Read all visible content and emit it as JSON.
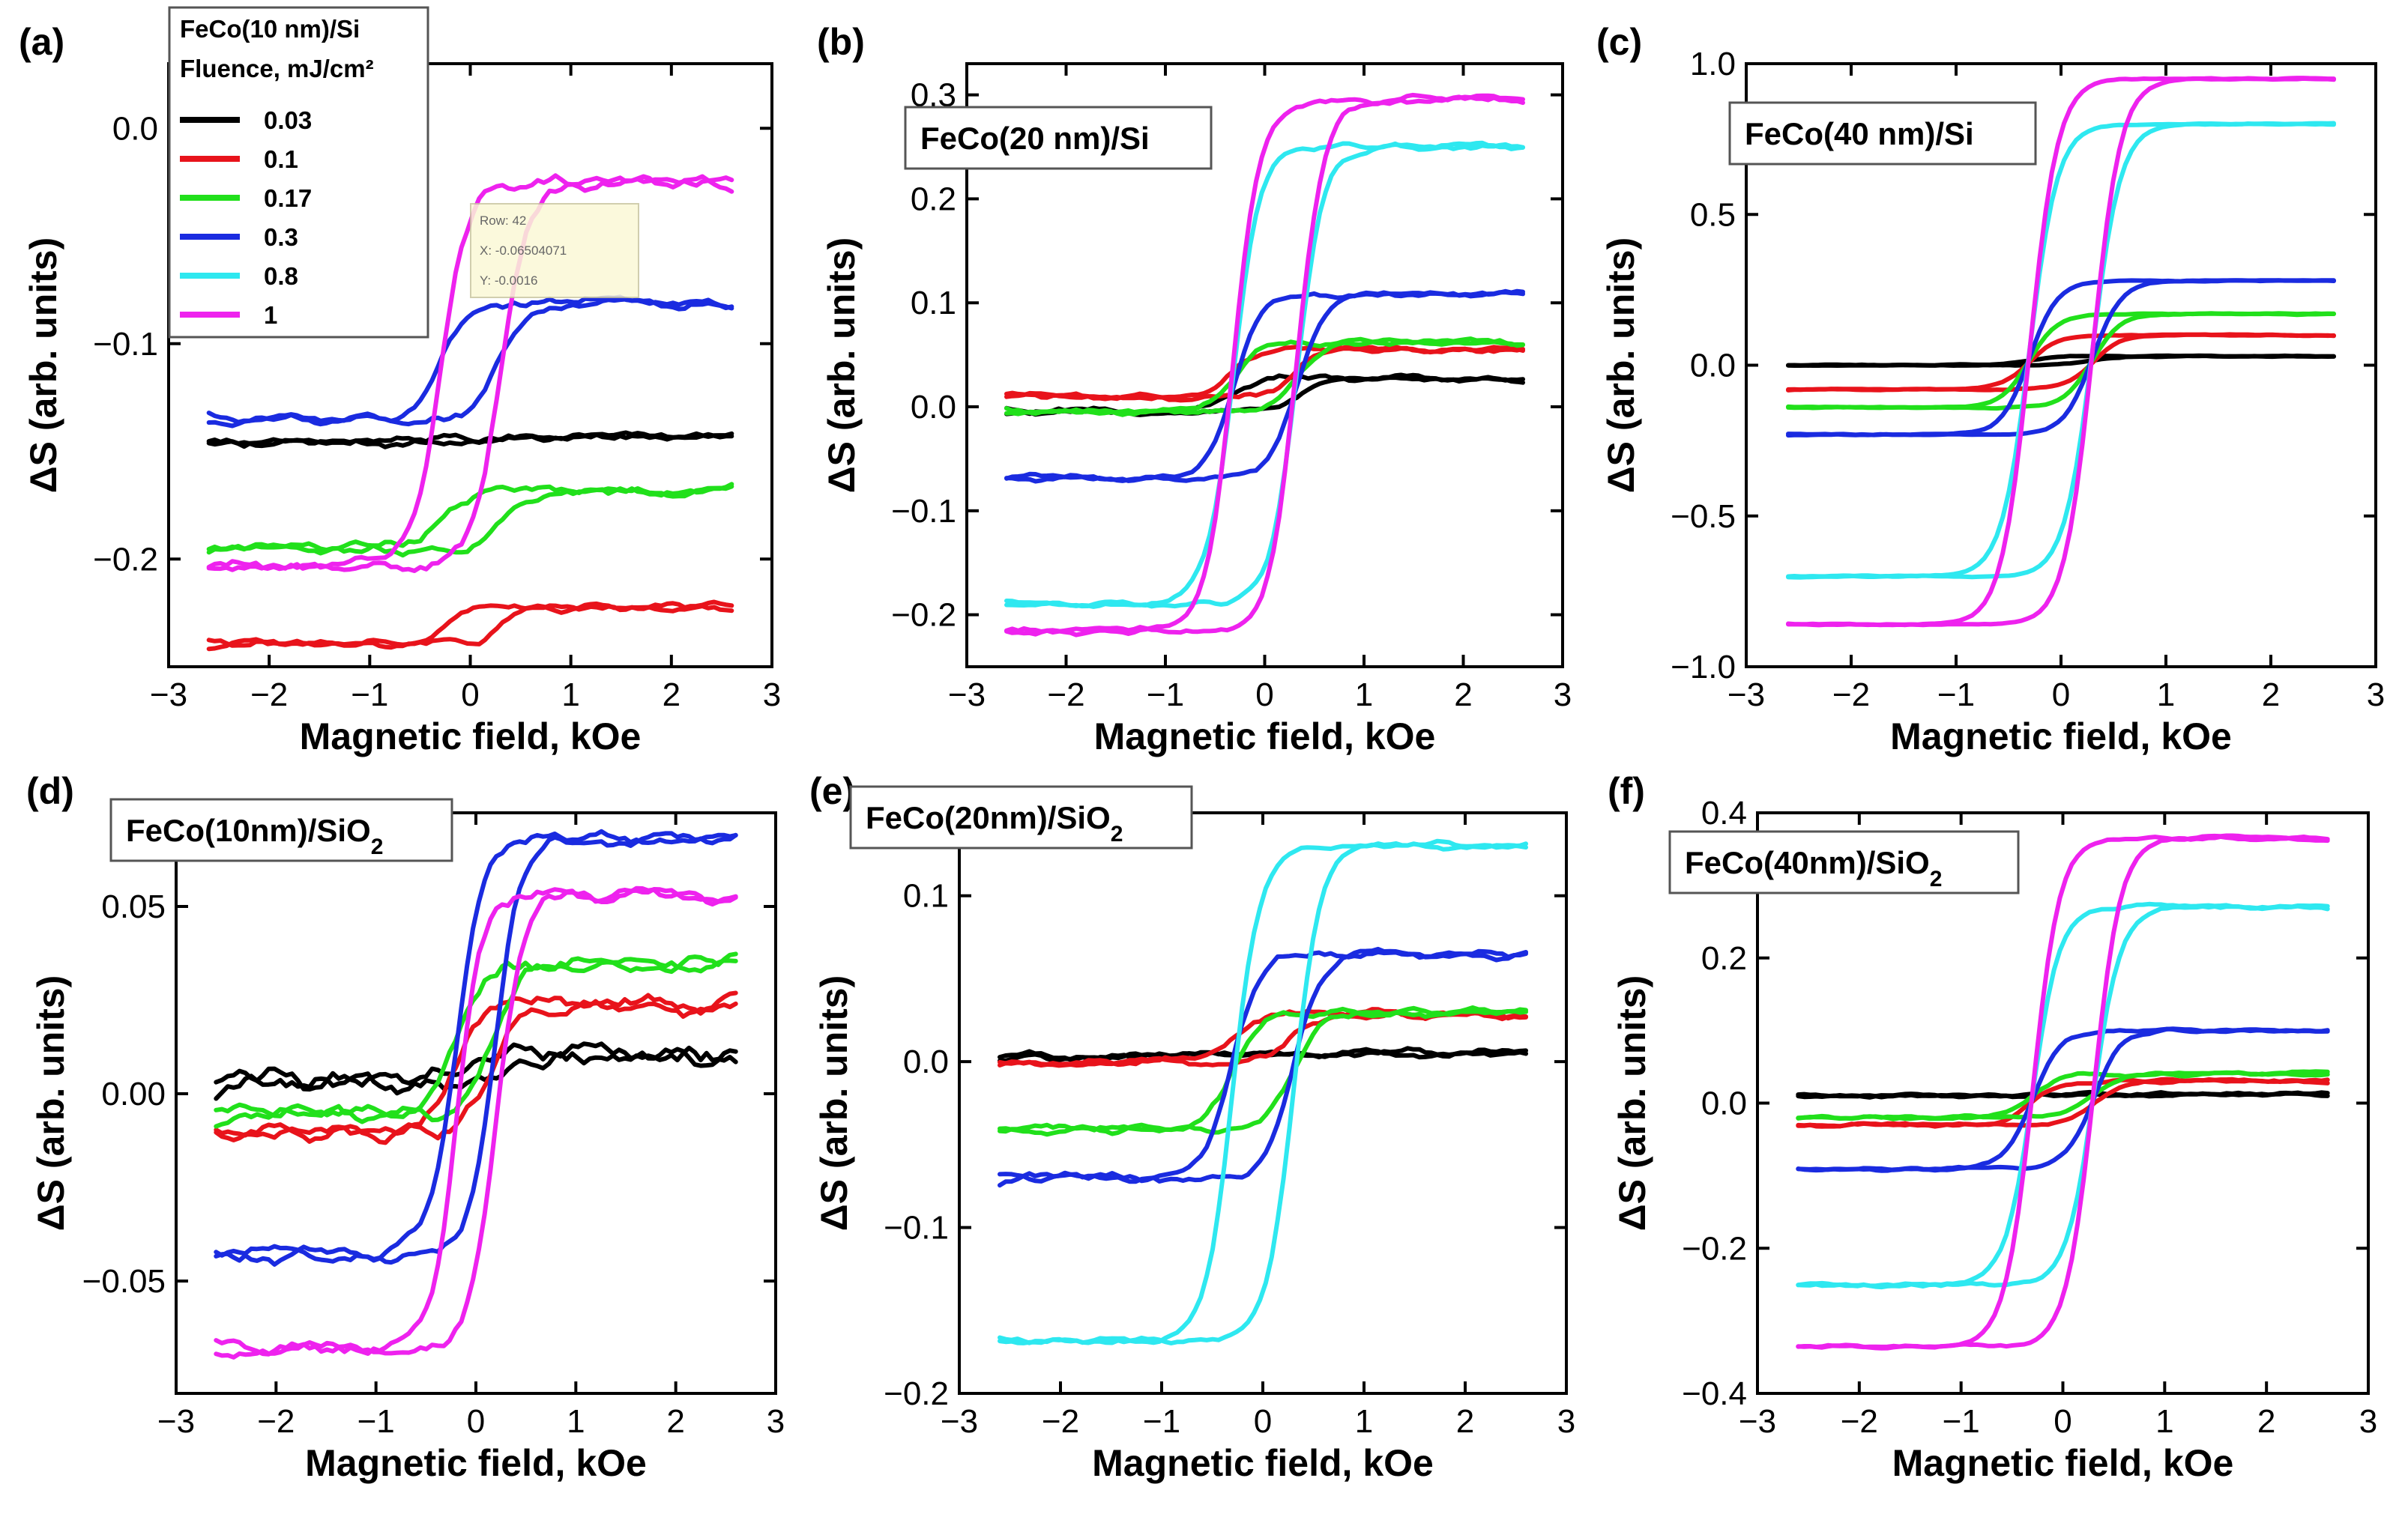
{
  "colors": {
    "0.03": "#000000",
    "0.1": "#e8131b",
    "0.17": "#21e01b",
    "0.3": "#1a2be0",
    "0.8": "#2ee8f0",
    "1": "#ee22ee"
  },
  "legend": {
    "sample": "FeCo(10 nm)/Si",
    "title": "Fluence, mJ/cm²",
    "entries": [
      "0.03",
      "0.1",
      "0.17",
      "0.3",
      "0.8",
      "1"
    ]
  },
  "tooltip": {
    "row": "Row: 42",
    "x": "X:    -0.06504071",
    "y": "Y:    -0.0016"
  },
  "chart_data": [
    {
      "type": "line",
      "panel": "(a)",
      "annotation": "FeCo(10 nm)/Si",
      "xlabel": "Magnetic field, kOe",
      "ylabel": "ΔS (arb. units)",
      "xlim": [
        -3,
        3
      ],
      "ylim": [
        -0.25,
        0.03
      ],
      "xticks": [
        -3,
        -2,
        -1,
        0,
        1,
        2,
        3
      ],
      "yticks": [
        0.0,
        -0.1,
        -0.2
      ],
      "yticklabels": [
        "0.0",
        "-0.1",
        "-0.2"
      ],
      "hc": 0.3,
      "series": [
        {
          "name": "0.03",
          "low": -0.146,
          "high": -0.143,
          "noise": 0.004
        },
        {
          "name": "0.1",
          "low": -0.24,
          "high": -0.222,
          "noise": 0.004
        },
        {
          "name": "0.17",
          "low": -0.195,
          "high": -0.168,
          "noise": 0.005
        },
        {
          "name": "0.3",
          "low": -0.135,
          "high": -0.082,
          "noise": 0.005
        },
        {
          "name": "0.8",
          "low": null,
          "high": null,
          "noise": 0
        },
        {
          "name": "1",
          "low": -0.203,
          "high": -0.025,
          "noise": 0.006
        }
      ]
    },
    {
      "type": "line",
      "panel": "(b)",
      "annotation": "FeCo(20 nm)/Si",
      "xlabel": "Magnetic field, kOe",
      "ylabel": "ΔS (arb. units)",
      "xlim": [
        -3,
        3
      ],
      "ylim": [
        -0.25,
        0.33
      ],
      "xticks": [
        -3,
        -2,
        -1,
        0,
        1,
        2,
        3
      ],
      "yticks": [
        0.3,
        0.2,
        0.1,
        0.0,
        -0.1,
        -0.2
      ],
      "yticklabels": [
        "0.3",
        "0.2",
        "0.1",
        "0.0",
        "-0.1",
        "-0.2"
      ],
      "hc": 0.32,
      "series": [
        {
          "name": "0.03",
          "low": -0.005,
          "high": 0.027,
          "noise": 0.006
        },
        {
          "name": "0.1",
          "low": 0.01,
          "high": 0.055,
          "noise": 0.006
        },
        {
          "name": "0.17",
          "low": -0.005,
          "high": 0.062,
          "noise": 0.006
        },
        {
          "name": "0.3",
          "low": -0.068,
          "high": 0.108,
          "noise": 0.006
        },
        {
          "name": "0.8",
          "low": -0.19,
          "high": 0.25,
          "noise": 0.006
        },
        {
          "name": "1",
          "low": -0.215,
          "high": 0.295,
          "noise": 0.008
        }
      ]
    },
    {
      "type": "line",
      "panel": "(c)",
      "annotation": "FeCo(40 nm)/Si",
      "xlabel": "Magnetic field, kOe",
      "ylabel": "ΔS (arb. units)",
      "xlim": [
        -3,
        3
      ],
      "ylim": [
        -1.0,
        1.0
      ],
      "xticks": [
        -3,
        -2,
        -1,
        0,
        1,
        2,
        3
      ],
      "yticks": [
        1.0,
        0.5,
        0.0,
        -0.5,
        -1.0
      ],
      "yticklabels": [
        "1.0",
        "0.5",
        "0.0",
        "-0.5",
        "-1.0"
      ],
      "hc": 0.3,
      "series": [
        {
          "name": "0.03",
          "low": 0.0,
          "high": 0.03,
          "noise": 0.004
        },
        {
          "name": "0.1",
          "low": -0.08,
          "high": 0.1,
          "noise": 0.004
        },
        {
          "name": "0.17",
          "low": -0.14,
          "high": 0.17,
          "noise": 0.004
        },
        {
          "name": "0.3",
          "low": -0.23,
          "high": 0.28,
          "noise": 0.004
        },
        {
          "name": "0.8",
          "low": -0.7,
          "high": 0.8,
          "noise": 0.005
        },
        {
          "name": "1",
          "low": -0.86,
          "high": 0.95,
          "noise": 0.005
        }
      ]
    },
    {
      "type": "line",
      "panel": "(d)",
      "annotation": "FeCo(10nm)/SiO",
      "annotation_sub": "2",
      "xlabel": "Magnetic field, kOe",
      "ylabel": "ΔS (arb. units)",
      "xlim": [
        -3,
        3
      ],
      "ylim": [
        -0.08,
        0.075
      ],
      "xticks": [
        -3,
        -2,
        -1,
        0,
        1,
        2,
        3
      ],
      "yticks": [
        0.05,
        0.0,
        -0.05
      ],
      "yticklabels": [
        "0.05",
        "0.00",
        "-0.05"
      ],
      "hc": 0.2,
      "series": [
        {
          "name": "0.03",
          "low": 0.003,
          "high": 0.01,
          "noise": 0.006
        },
        {
          "name": "0.1",
          "low": -0.01,
          "high": 0.024,
          "noise": 0.005
        },
        {
          "name": "0.17",
          "low": -0.005,
          "high": 0.035,
          "noise": 0.005
        },
        {
          "name": "0.3",
          "low": -0.043,
          "high": 0.068,
          "noise": 0.004
        },
        {
          "name": "0.8",
          "low": null,
          "high": null,
          "noise": 0
        },
        {
          "name": "1",
          "low": -0.068,
          "high": 0.053,
          "noise": 0.004
        }
      ]
    },
    {
      "type": "line",
      "panel": "(e)",
      "annotation": "FeCo(20nm)/SiO",
      "annotation_sub": "2",
      "xlabel": "Magnetic field, kOe",
      "ylabel": "ΔS (arb. units)",
      "xlim": [
        -3,
        3
      ],
      "ylim": [
        -0.2,
        0.15
      ],
      "xticks": [
        -3,
        -2,
        -1,
        0,
        1,
        2,
        3
      ],
      "yticks": [
        0.1,
        0.0,
        -0.1,
        -0.2
      ],
      "yticklabels": [
        "0.1",
        "0.0",
        "-0.1",
        "-0.2"
      ],
      "hc": 0.3,
      "series": [
        {
          "name": "0.03",
          "low": 0.003,
          "high": 0.005,
          "noise": 0.005
        },
        {
          "name": "0.1",
          "low": 0.0,
          "high": 0.028,
          "noise": 0.005
        },
        {
          "name": "0.17",
          "low": -0.04,
          "high": 0.03,
          "noise": 0.005
        },
        {
          "name": "0.3",
          "low": -0.07,
          "high": 0.065,
          "noise": 0.006
        },
        {
          "name": "0.8",
          "low": -0.168,
          "high": 0.13,
          "noise": 0.004
        },
        {
          "name": "1",
          "low": null,
          "high": null,
          "noise": 0
        }
      ]
    },
    {
      "type": "line",
      "panel": "(f)",
      "annotation": "FeCo(40nm)/SiO",
      "annotation_sub": "2",
      "xlabel": "Magnetic field, kOe",
      "ylabel": "ΔS (arb. units)",
      "xlim": [
        -3,
        3
      ],
      "ylim": [
        -0.4,
        0.4
      ],
      "xticks": [
        -3,
        -2,
        -1,
        0,
        1,
        2,
        3
      ],
      "yticks": [
        0.4,
        0.2,
        0.0,
        -0.2,
        -0.4
      ],
      "yticklabels": [
        "0.4",
        "0.2",
        "0.0",
        "-0.2",
        "-0.4"
      ],
      "hc": 0.3,
      "series": [
        {
          "name": "0.03",
          "low": 0.01,
          "high": 0.012,
          "noise": 0.005
        },
        {
          "name": "0.1",
          "low": -0.03,
          "high": 0.03,
          "noise": 0.005
        },
        {
          "name": "0.17",
          "low": -0.02,
          "high": 0.04,
          "noise": 0.005
        },
        {
          "name": "0.3",
          "low": -0.09,
          "high": 0.1,
          "noise": 0.005
        },
        {
          "name": "0.8",
          "low": -0.25,
          "high": 0.27,
          "noise": 0.006
        },
        {
          "name": "1",
          "low": -0.335,
          "high": 0.365,
          "noise": 0.005
        }
      ]
    }
  ]
}
